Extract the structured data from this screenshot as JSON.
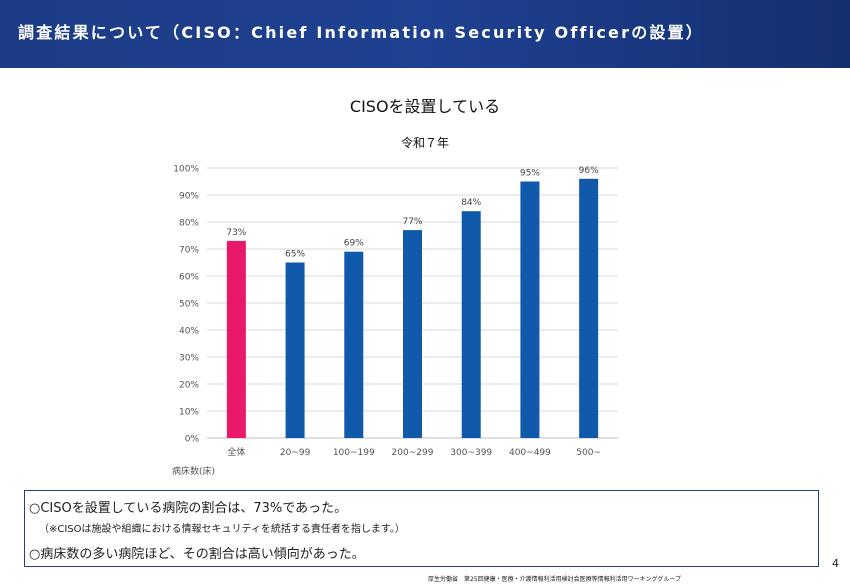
{
  "header": {
    "title": "調査結果について（CISO：Chief Information Security Officerの設置）"
  },
  "slide": {
    "title": "CISOを設置している",
    "chart_subtitle": "令和７年"
  },
  "colors": {
    "highlight_bar": "#e8196b",
    "bar": "#1159aa",
    "header_bg": "#1e4191",
    "box_border": "#1f3f86"
  },
  "chart_data": {
    "type": "bar",
    "title": "令和７年",
    "categories": [
      "全体",
      "20~99",
      "100~199",
      "200~299",
      "300~399",
      "400~499",
      "500~"
    ],
    "values": [
      73,
      65,
      69,
      77,
      84,
      95,
      96
    ],
    "data_labels": [
      "73%",
      "65%",
      "69%",
      "77%",
      "84%",
      "95%",
      "96%"
    ],
    "highlight_index": 0,
    "xlabel": "病床数(床)",
    "ylabel": "",
    "ylim": [
      0,
      100
    ],
    "yticks": [
      0,
      10,
      20,
      30,
      40,
      50,
      60,
      70,
      80,
      90,
      100
    ],
    "ytick_labels": [
      "0%",
      "10%",
      "20%",
      "30%",
      "40%",
      "50%",
      "60%",
      "70%",
      "80%",
      "90%",
      "100%"
    ],
    "grid": true,
    "legend": "none"
  },
  "summary": {
    "line1": "○CISOを設置している病院の割合は、73%であった。",
    "note": "（※CISOは施設や組織における情報セキュリティを統括する責任者を指します。）",
    "line2": "○病床数の多い病院ほど、その割合は高い傾向があった。"
  },
  "page_number": "4",
  "footer": "厚生労働省　第25回健康・医療・介護情報利活用検討会医療等情報利活用ワーキンググループ"
}
